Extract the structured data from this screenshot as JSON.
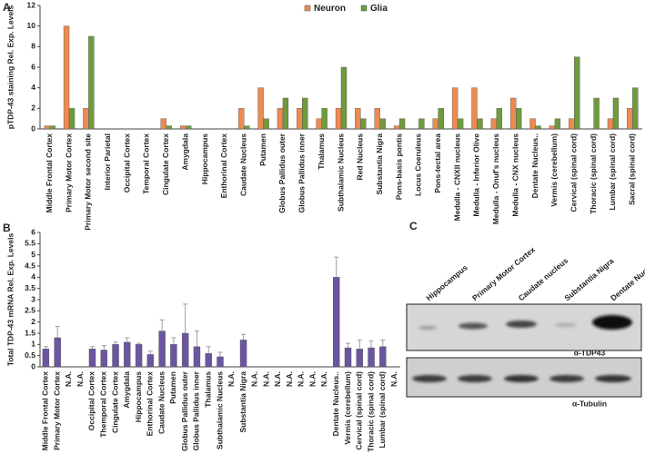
{
  "chart_data": [
    {
      "type": "bar",
      "panel": "A",
      "ylabel": "pTDP-43 staining Rel. Exp. Levels",
      "legend": "top",
      "categories": [
        "Middle Frontal Cortex",
        "Primary Motor Cortex",
        "Primary Motor second site",
        "Interior Parietal",
        "Occipital Cortex",
        "Temporal Cortex",
        "Cingulate Cortex",
        "Amygdala",
        "Hippocampus",
        "Enthorinal Cortex",
        "Caudate Nucleus",
        "Putamen",
        "Globus Pallidus outer",
        "Globus Pallidus inner",
        "Thalamus",
        "Subthalamic Nucleus",
        "Red Nucleus",
        "Substantia Nigra",
        "Pons-basis pontis",
        "Locus Coeruleus",
        "Pons-tectal area",
        "Medulla - CNXII nucleus",
        "Medulla - Inferior Olive",
        "Medulla - Onuf's nucleus",
        "Medulla - CNX nucleus",
        "Dentate Nucleus..",
        "Vermis (cerebellum)",
        "Cervical (spinal cord)",
        "Thoracic (spinal cord)",
        "Lumbar (spinal cord)",
        "Sacral (spinal cord)"
      ],
      "series": [
        {
          "name": "Neuron",
          "color": "#ed8a4f",
          "values": [
            0.3,
            10,
            2,
            0,
            0,
            0,
            1,
            0.3,
            0,
            0,
            2,
            4,
            2,
            2,
            1,
            2,
            2,
            2,
            0.3,
            0,
            1,
            4,
            4,
            1,
            3,
            1,
            0.3,
            1,
            0,
            1,
            2
          ]
        },
        {
          "name": "Glia",
          "color": "#6f9a3e",
          "values": [
            0.3,
            2,
            9,
            0,
            0,
            0,
            0.3,
            0.3,
            0,
            0,
            0.3,
            1,
            3,
            3,
            2,
            6,
            1,
            1,
            1,
            1,
            2,
            1,
            1,
            2,
            2,
            0.3,
            1,
            7,
            3,
            3,
            4
          ]
        }
      ],
      "ylim": [
        0,
        12
      ],
      "yticks": [
        0,
        2,
        4,
        6,
        8,
        10,
        12
      ]
    },
    {
      "type": "bar",
      "panel": "B",
      "ylabel": "Total TDP-43 mRNA Rel. Exp. Levels",
      "color": "#6b55a0",
      "categories": [
        "Middle Frontal Cortex",
        "Primary Motor Cortex",
        "N.A.",
        "N.A.",
        "Occipital Cortex",
        "Themporal Cortex",
        "Cingulate Cortex",
        "Amygdala",
        "Hippocampus",
        "Enthorinal Cortex",
        "Caudate Nucleus",
        "Putamen",
        "Globus Pallidus outer",
        "Globus Pallidus inner",
        "Thalamus",
        "Subthalamic Nucleus",
        "N.A.",
        "Substantia Nigra",
        "N.A.",
        "N.A.",
        "N.A.",
        "N.A.",
        "N.A.",
        "N.A.",
        "N.A.",
        "Dentate Nucleus..",
        "Vermis (cerebellum)",
        "Cervical (spinal cord)",
        "Thoracic (spinal cord)",
        "Lumbar (spinal cord)",
        "N.A."
      ],
      "values": [
        0.8,
        1.3,
        null,
        null,
        0.8,
        0.75,
        1.0,
        1.1,
        1.0,
        0.55,
        1.6,
        1.0,
        1.5,
        0.9,
        0.6,
        0.45,
        null,
        1.2,
        null,
        null,
        null,
        null,
        null,
        null,
        null,
        4.0,
        0.85,
        0.8,
        0.85,
        0.9,
        null
      ],
      "errors": [
        0.1,
        0.5,
        null,
        null,
        0.1,
        0.2,
        0.1,
        0.2,
        0.05,
        0.15,
        0.5,
        0.3,
        1.3,
        0.7,
        0.3,
        0.2,
        null,
        0.25,
        null,
        null,
        null,
        null,
        null,
        null,
        null,
        0.9,
        0.2,
        0.4,
        0.3,
        0.3,
        null
      ],
      "ylim": [
        0,
        6
      ],
      "yticks": [
        0,
        0.5,
        1,
        1.5,
        2,
        2.5,
        3,
        3.5,
        4,
        4.5,
        5,
        5.5,
        6
      ]
    }
  ],
  "blot": {
    "panel": "C",
    "lanes": [
      "Hippocampus",
      "Primary Motor Cortex",
      "Caudate nucleus",
      "Substantia Nigra",
      "Dentate Nucleus"
    ],
    "antibodies": [
      "α-TDP43",
      "α-Tubulin"
    ]
  }
}
